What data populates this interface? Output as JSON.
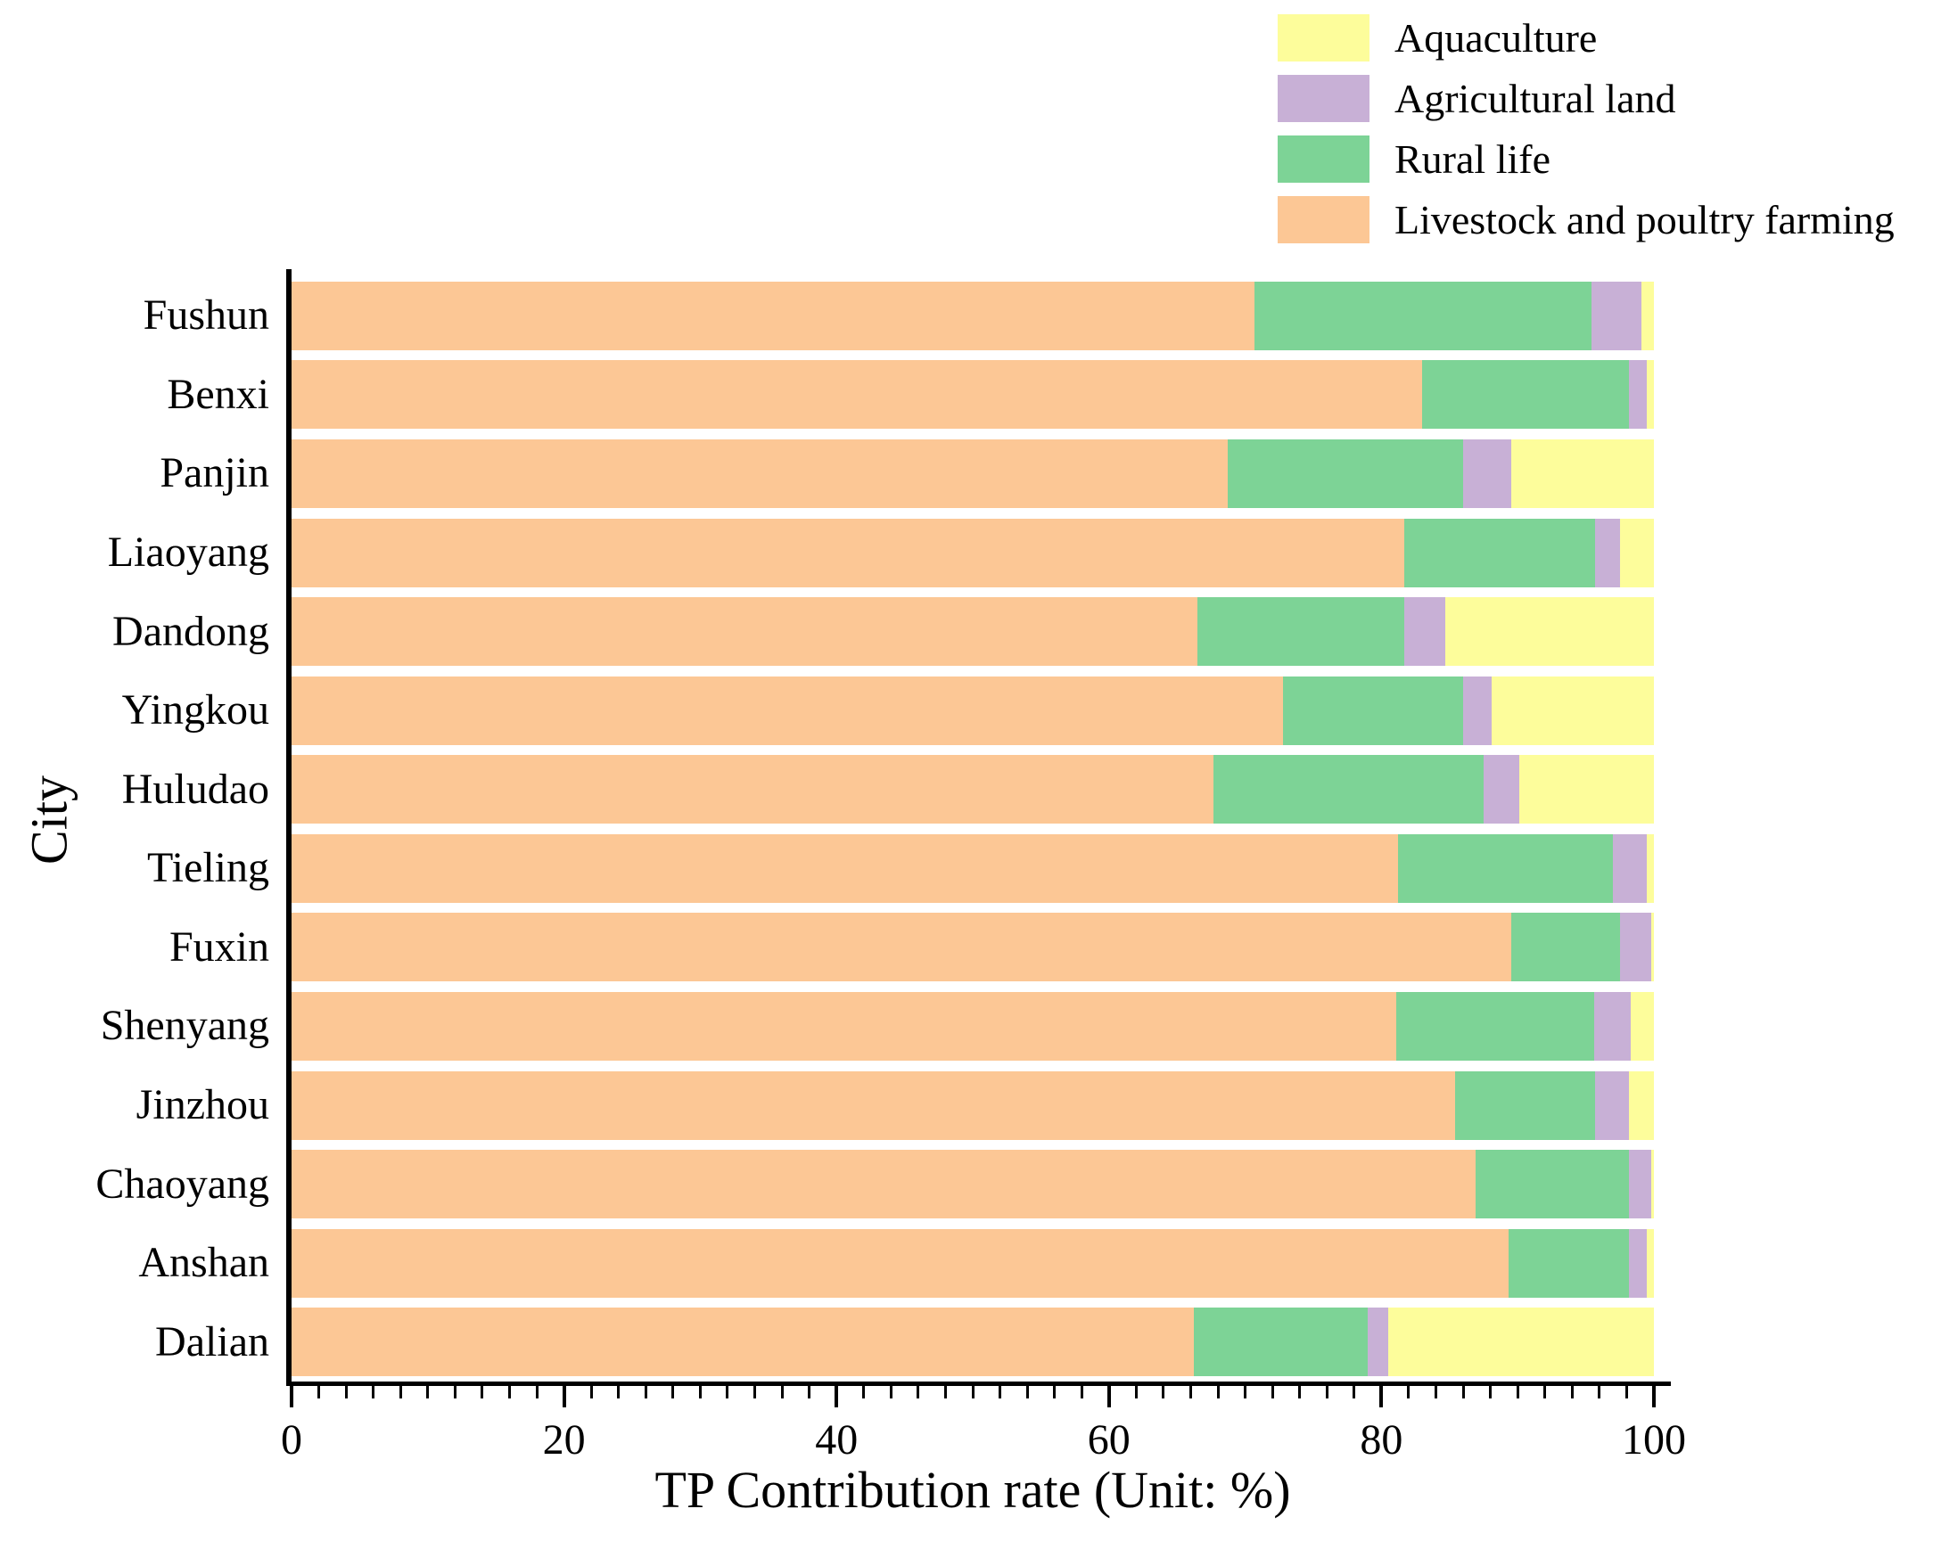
{
  "figure": {
    "x_axis_title": "TP Contribution rate (Unit: %)",
    "y_axis_title": "City"
  },
  "legend": {
    "position": "top-right",
    "items": [
      {
        "label": "Aquaculture",
        "color": "#FDFD9B"
      },
      {
        "label": "Agricultural land",
        "color": "#C8B0D6"
      },
      {
        "label": "Rural life",
        "color": "#7DD396"
      },
      {
        "label": "Livestock and poultry farming",
        "color": "#FCC795"
      }
    ]
  },
  "chart_data": {
    "type": "bar",
    "orientation": "horizontal",
    "stacked": true,
    "title": "",
    "xlabel": "TP Contribution rate (Unit: %)",
    "ylabel": "City",
    "xlim": [
      0,
      100
    ],
    "x_major_ticks": [
      0,
      20,
      40,
      60,
      80,
      100
    ],
    "x_minor_tick_interval": 2,
    "grid": false,
    "legend_position": "top-right",
    "categories": [
      "Fushun",
      "Benxi",
      "Panjin",
      "Liaoyang",
      "Dandong",
      "Yingkou",
      "Huludao",
      "Tieling",
      "Fuxin",
      "Shenyang",
      "Jinzhou",
      "Chaoyang",
      "Anshan",
      "Dalian"
    ],
    "series": [
      {
        "name": "Livestock and poultry farming",
        "color": "#FCC795",
        "values": [
          70.7,
          83.0,
          68.7,
          81.7,
          66.5,
          72.8,
          67.7,
          81.2,
          89.5,
          81.1,
          85.4,
          86.9,
          89.3,
          66.2
        ]
      },
      {
        "name": "Rural life",
        "color": "#7DD396",
        "values": [
          24.7,
          15.2,
          17.3,
          14.0,
          15.2,
          13.2,
          19.8,
          15.8,
          8.0,
          14.5,
          10.3,
          11.3,
          8.9,
          12.8
        ]
      },
      {
        "name": "Agricultural land",
        "color": "#C8B0D6",
        "values": [
          3.7,
          1.3,
          3.5,
          1.8,
          3.0,
          2.1,
          2.6,
          2.5,
          2.3,
          2.7,
          2.5,
          1.6,
          1.3,
          1.5
        ]
      },
      {
        "name": "Aquaculture",
        "color": "#FDFD9B",
        "values": [
          0.9,
          0.5,
          10.5,
          2.5,
          15.3,
          11.9,
          9.9,
          0.5,
          0.2,
          1.7,
          1.8,
          0.2,
          0.5,
          19.5
        ]
      }
    ]
  }
}
